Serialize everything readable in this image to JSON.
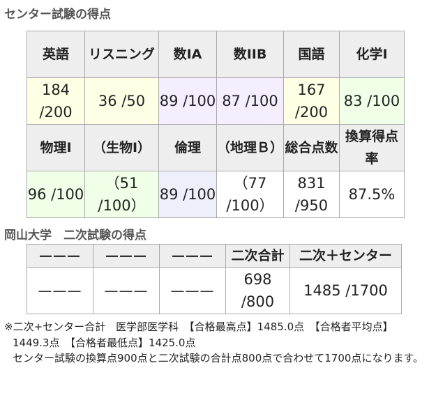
{
  "center_section": {
    "title": "センター試験の得点",
    "row1_headers": [
      "英語",
      "リスニング",
      "数IA",
      "数IIB",
      "国語",
      "化学I"
    ],
    "row1_values": [
      "184 /200",
      "36 /50",
      "89 /100",
      "87 /100",
      "167 /200",
      "83 /100"
    ],
    "row2_headers": [
      "物理I",
      "（生物I）",
      "倫理",
      "（地理Ｂ）",
      "総合点数",
      "換算得点率"
    ],
    "row2_values": [
      "96 /100",
      "（51 /100）",
      "89 /100",
      "（77 /100）",
      "831 /950",
      "87.5%"
    ],
    "cell_colors": {
      "yellow": "#ffffe6",
      "purple": "#f4eeff",
      "blue": "#efeffc",
      "green": "#f0ffe8",
      "header": "#eeeeee"
    }
  },
  "second_section": {
    "title": "岡山大学　二次試験の得点",
    "headers": [
      "———",
      "———",
      "———",
      "二次合計",
      "二次＋センター"
    ],
    "values": [
      "———",
      "———",
      "———",
      "698 /800",
      "1485 /1700"
    ]
  },
  "note": {
    "line1": "※二次+センター合計　医学部医学科　【合格最高点】1485.0点　【合格者平均点】",
    "line2": "1449.3点　【合格者最低点】1425.0点",
    "line3": "センター試験の換算点900点と二次試験の合計点800点で合わせて1700点になります。"
  }
}
